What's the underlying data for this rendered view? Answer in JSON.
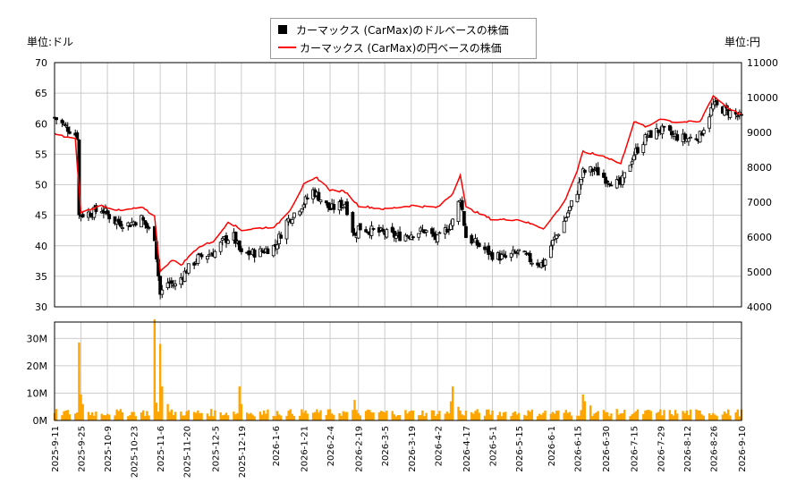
{
  "units": {
    "left": "単位:ドル",
    "right": "単位:円"
  },
  "legend": {
    "usd": "カーマックス (CarMax)のドルベースの株価",
    "jpy": "カーマックス (CarMax)の円ベースの株価"
  },
  "colors": {
    "candle": "#000000",
    "jpy_line": "#ff0000",
    "volume_bar": "#ffa500",
    "grid": "#cccccc"
  },
  "chart_data": [
    {
      "type": "candlestick",
      "series": [
        {
          "name": "カーマックス (CarMax)のドルベースの株価",
          "axis": "left"
        },
        {
          "name": "カーマックス (CarMax)の円ベースの株価",
          "axis": "right",
          "type": "line"
        }
      ],
      "x_ticks": [
        "2025-9-11",
        "2025-9-25",
        "2025-10-9",
        "2025-10-23",
        "2025-11-6",
        "2025-11-20",
        "2025-12-5",
        "2025-12-19",
        "2026-1-6",
        "2026-1-21",
        "2026-2-4",
        "2026-2-19",
        "2026-3-5",
        "2026-3-19",
        "2026-4-2",
        "2026-4-17",
        "2026-5-1",
        "2026-5-15",
        "2026-6-1",
        "2026-6-15",
        "2026-6-30",
        "2026-7-15",
        "2026-7-29",
        "2026-8-12",
        "2026-8-26",
        "2026-9-10"
      ],
      "ylim_left": [
        30,
        70
      ],
      "yticks_left": [
        30,
        35,
        40,
        45,
        50,
        55,
        60,
        65,
        70
      ],
      "ylim_right": [
        4000,
        11000
      ],
      "yticks_right": [
        4000,
        5000,
        6000,
        7000,
        8000,
        9000,
        10000,
        11000
      ],
      "usd_anchors": [
        [
          "2025-9-11",
          61
        ],
        [
          "2025-9-19",
          59
        ],
        [
          "2025-9-23",
          58
        ],
        [
          "2025-9-24",
          45
        ],
        [
          "2025-10-1",
          45.5
        ],
        [
          "2025-10-6",
          46
        ],
        [
          "2025-10-13",
          44
        ],
        [
          "2025-10-20",
          43.5
        ],
        [
          "2025-10-27",
          44.5
        ],
        [
          "2025-10-31",
          42.5
        ],
        [
          "2025-11-3",
          41.5
        ],
        [
          "2025-11-6",
          32
        ],
        [
          "2025-11-10",
          34
        ],
        [
          "2025-11-14",
          33.5
        ],
        [
          "2025-11-20",
          36
        ],
        [
          "2025-11-26",
          38
        ],
        [
          "2025-12-5",
          39
        ],
        [
          "2025-12-10",
          41
        ],
        [
          "2025-12-15",
          41.5
        ],
        [
          "2025-12-19",
          38.5
        ],
        [
          "2025-12-29",
          39
        ],
        [
          "2026-1-6",
          40
        ],
        [
          "2026-1-12",
          44
        ],
        [
          "2026-1-21",
          47
        ],
        [
          "2026-1-26",
          49
        ],
        [
          "2026-2-4",
          46
        ],
        [
          "2026-2-12",
          47
        ],
        [
          "2026-2-17",
          41.5
        ],
        [
          "2026-2-19",
          43
        ],
        [
          "2026-3-5",
          42
        ],
        [
          "2026-3-12",
          41.5
        ],
        [
          "2026-3-19",
          42
        ],
        [
          "2026-3-26",
          42.5
        ],
        [
          "2026-4-2",
          41
        ],
        [
          "2026-4-10",
          44
        ],
        [
          "2026-4-14",
          48
        ],
        [
          "2026-4-17",
          41.5
        ],
        [
          "2026-4-24",
          40
        ],
        [
          "2026-5-1",
          38.5
        ],
        [
          "2026-5-8",
          38
        ],
        [
          "2026-5-15",
          39
        ],
        [
          "2026-5-22",
          37.5
        ],
        [
          "2026-5-28",
          37
        ],
        [
          "2026-6-1",
          40
        ],
        [
          "2026-6-8",
          44
        ],
        [
          "2026-6-15",
          49
        ],
        [
          "2026-6-18",
          52
        ],
        [
          "2026-6-24",
          52.5
        ],
        [
          "2026-6-30",
          51
        ],
        [
          "2026-7-8",
          50
        ],
        [
          "2026-7-15",
          55
        ],
        [
          "2026-7-22",
          58
        ],
        [
          "2026-7-29",
          59
        ],
        [
          "2026-8-5",
          58
        ],
        [
          "2026-8-12",
          57.5
        ],
        [
          "2026-8-19",
          58
        ],
        [
          "2026-8-26",
          63
        ],
        [
          "2026-9-3",
          62
        ],
        [
          "2026-9-10",
          61
        ]
      ],
      "jpy_anchors": [
        [
          "2025-9-11",
          8950
        ],
        [
          "2025-9-22",
          8800
        ],
        [
          "2025-9-25",
          6700
        ],
        [
          "2025-10-6",
          6900
        ],
        [
          "2025-10-16",
          6750
        ],
        [
          "2025-10-27",
          6850
        ],
        [
          "2025-11-3",
          6600
        ],
        [
          "2025-11-6",
          5000
        ],
        [
          "2025-11-12",
          5350
        ],
        [
          "2025-11-17",
          5200
        ],
        [
          "2025-11-26",
          5700
        ],
        [
          "2025-12-5",
          5900
        ],
        [
          "2025-12-12",
          6450
        ],
        [
          "2025-12-19",
          6200
        ],
        [
          "2026-1-6",
          6300
        ],
        [
          "2026-1-14",
          6800
        ],
        [
          "2026-1-21",
          7500
        ],
        [
          "2026-1-28",
          7700
        ],
        [
          "2026-2-4",
          7350
        ],
        [
          "2026-2-12",
          7300
        ],
        [
          "2026-2-19",
          6900
        ],
        [
          "2026-3-5",
          6800
        ],
        [
          "2026-3-19",
          6900
        ],
        [
          "2026-4-2",
          6850
        ],
        [
          "2026-4-10",
          7250
        ],
        [
          "2026-4-14",
          7800
        ],
        [
          "2026-4-17",
          6850
        ],
        [
          "2026-5-1",
          6500
        ],
        [
          "2026-5-15",
          6500
        ],
        [
          "2026-5-28",
          6250
        ],
        [
          "2026-6-1",
          6500
        ],
        [
          "2026-6-8",
          7000
        ],
        [
          "2026-6-15",
          7900
        ],
        [
          "2026-6-18",
          8450
        ],
        [
          "2026-6-30",
          8300
        ],
        [
          "2026-7-8",
          8100
        ],
        [
          "2026-7-15",
          9300
        ],
        [
          "2026-7-22",
          9150
        ],
        [
          "2026-7-29",
          9400
        ],
        [
          "2026-8-5",
          9300
        ],
        [
          "2026-8-19",
          9300
        ],
        [
          "2026-8-26",
          10050
        ],
        [
          "2026-9-3",
          9700
        ],
        [
          "2026-9-10",
          9500
        ]
      ]
    },
    {
      "type": "bar",
      "name": "volume",
      "ylim": [
        0,
        36000000
      ],
      "yticks": [
        0,
        10000000,
        20000000,
        30000000
      ],
      "ytick_labels": [
        "0M",
        "10M",
        "20M",
        "30M"
      ],
      "baseline": 3000000,
      "spikes": [
        [
          "2025-9-24",
          28500000
        ],
        [
          "2025-9-25",
          9500000
        ],
        [
          "2025-9-26",
          6000000
        ],
        [
          "2025-11-3",
          37000000
        ],
        [
          "2025-11-4",
          6500000
        ],
        [
          "2025-11-6",
          28000000
        ],
        [
          "2025-11-7",
          12500000
        ],
        [
          "2025-11-10",
          6000000
        ],
        [
          "2025-12-18",
          12500000
        ],
        [
          "2025-12-19",
          6000000
        ],
        [
          "2026-2-17",
          7500000
        ],
        [
          "2026-4-9",
          7000000
        ],
        [
          "2026-4-10",
          12500000
        ],
        [
          "2026-4-13",
          5000000
        ],
        [
          "2026-6-18",
          9500000
        ],
        [
          "2026-6-19",
          7000000
        ],
        [
          "2026-6-22",
          5500000
        ]
      ]
    }
  ]
}
